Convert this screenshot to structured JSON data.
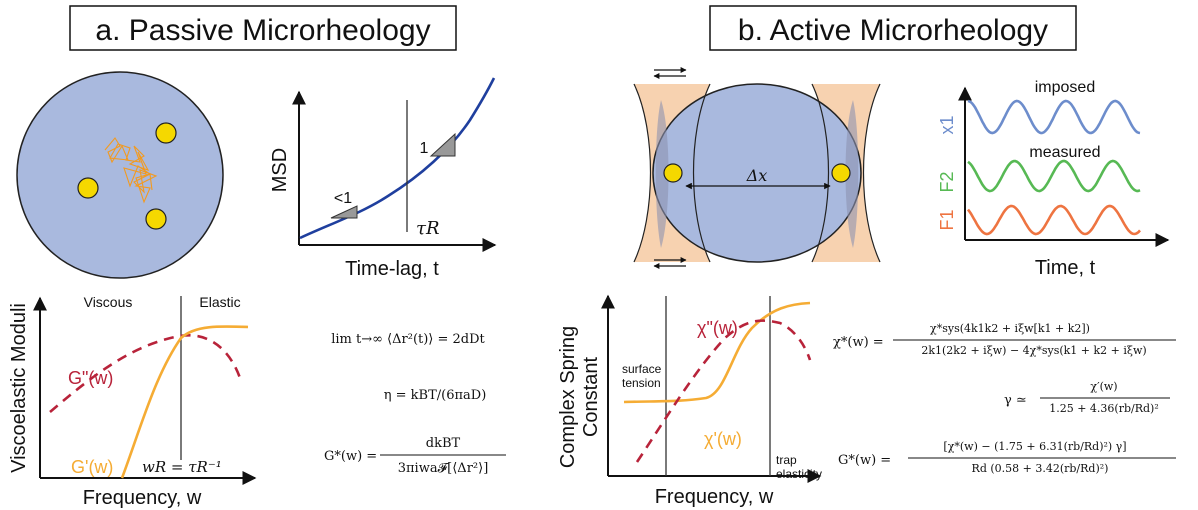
{
  "panel_a": {
    "title": "a. Passive Microrheology",
    "msd_ylabel": "MSD",
    "msd_xlabel": "Time-lag, t",
    "slope_small": "<1",
    "slope_one": "1",
    "tau_r": "τR",
    "moduli_ylabel": "Viscoelastic Moduli",
    "moduli_xlabel": "Frequency, w",
    "viscous": "Viscous",
    "elastic": "Elastic",
    "g_double_prime": "G\"(w)",
    "g_prime": "G'(w)",
    "w_r": "wR = τR⁻¹",
    "eq_limit": "lim t→∞ ⟨Δr²(t)⟩ = 2dDt",
    "eq_eta": "η = kBT/(6πaD)",
    "eq_gstar_lhs": "G*(w) =",
    "eq_gstar_num": "dkBT",
    "eq_gstar_den": "3πiwa𝓕[⟨Δr²⟩]"
  },
  "panel_b": {
    "title": "b. Active Microrheology",
    "delta_x": "Δx",
    "imposed": "imposed",
    "measured": "measured",
    "x1": "x1",
    "f2": "F2",
    "f1": "F1",
    "time_xlabel": "Time, t",
    "spring_ylabel_1": "Complex Spring",
    "spring_ylabel_2": "Constant",
    "spring_xlabel": "Frequency, w",
    "chi_double_prime": "χ\"(w)",
    "chi_prime": "χ'(w)",
    "surface_1": "surface",
    "surface_2": "tension",
    "trap_1": "trap",
    "trap_2": "elasticity",
    "eq_chi_lhs": "χ*(w) =",
    "eq_chi_num": "χ*sys(4k1k2 + iξw[k1 + k2])",
    "eq_chi_den": "2k1(2k2 + iξw) − 4χ*sys(k1 + k2 + iξw)",
    "eq_gamma_lhs": "γ ≃",
    "eq_gamma_num": "χ′(w)",
    "eq_gamma_den": "1.25 + 4.36(rb/Rd)²",
    "eq_g_lhs": "G*(w) =",
    "eq_g_num": "[χ*(w) − (1.75 + 6.31(rb/Rd)²) γ]",
    "eq_g_den": "Rd (0.58 + 3.42(rb/Rd)²)"
  },
  "colors": {
    "bead": "#f5d800",
    "droplet": "#a9b9de",
    "trap": "#f7d2b0",
    "msd_curve": "#1f3f9e",
    "g_double_prime": "#b8233a",
    "g_prime": "#f5ac34",
    "x1": "#6d8dcc",
    "f2": "#57b954",
    "f1": "#ee7441",
    "random_walk": "#f29a20"
  }
}
